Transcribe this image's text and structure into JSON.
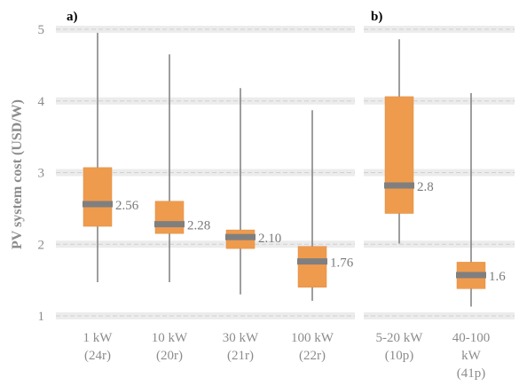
{
  "chart_data": [
    {
      "panel": "a)",
      "type": "box",
      "ylabel": "PV system cost (USD/W)",
      "ylim": [
        1,
        5
      ],
      "yticks": [
        "1",
        "2",
        "3",
        "4",
        "5"
      ],
      "grid": true,
      "categories": [
        {
          "lines": [
            "1 kW",
            "(24r)"
          ]
        },
        {
          "lines": [
            "10 kW",
            "(20r)"
          ]
        },
        {
          "lines": [
            "30 kW",
            "(21r)"
          ]
        },
        {
          "lines": [
            "100 kW",
            "(22r)"
          ]
        }
      ],
      "boxes": [
        {
          "min": 1.47,
          "q1": 2.25,
          "median": 2.56,
          "q3": 3.07,
          "max": 4.95,
          "label": "2.56"
        },
        {
          "min": 1.47,
          "q1": 2.15,
          "median": 2.28,
          "q3": 2.6,
          "max": 4.65,
          "label": "2.28"
        },
        {
          "min": 1.3,
          "q1": 1.94,
          "median": 2.1,
          "q3": 2.2,
          "max": 4.18,
          "label": "2.10"
        },
        {
          "min": 1.21,
          "q1": 1.4,
          "median": 1.76,
          "q3": 1.97,
          "max": 3.87,
          "label": "1.76"
        }
      ]
    },
    {
      "panel": "b)",
      "type": "box",
      "ylim": [
        1,
        5
      ],
      "grid": true,
      "categories": [
        {
          "lines": [
            "5-20 kW",
            "(10p)"
          ]
        },
        {
          "lines": [
            "40-100",
            "kW",
            "(41p)"
          ]
        }
      ],
      "boxes": [
        {
          "min": 2.01,
          "q1": 2.43,
          "median": 2.82,
          "q3": 4.06,
          "max": 4.86,
          "label": "2.8"
        },
        {
          "min": 1.13,
          "q1": 1.38,
          "median": 1.57,
          "q3": 1.75,
          "max": 4.11,
          "label": "1.6"
        }
      ]
    }
  ],
  "colors": {
    "box_fill": "#ef9b4e",
    "median": "#7f7f7f",
    "whisker": "#7f7f7f",
    "grid": "#d0d0d0"
  }
}
